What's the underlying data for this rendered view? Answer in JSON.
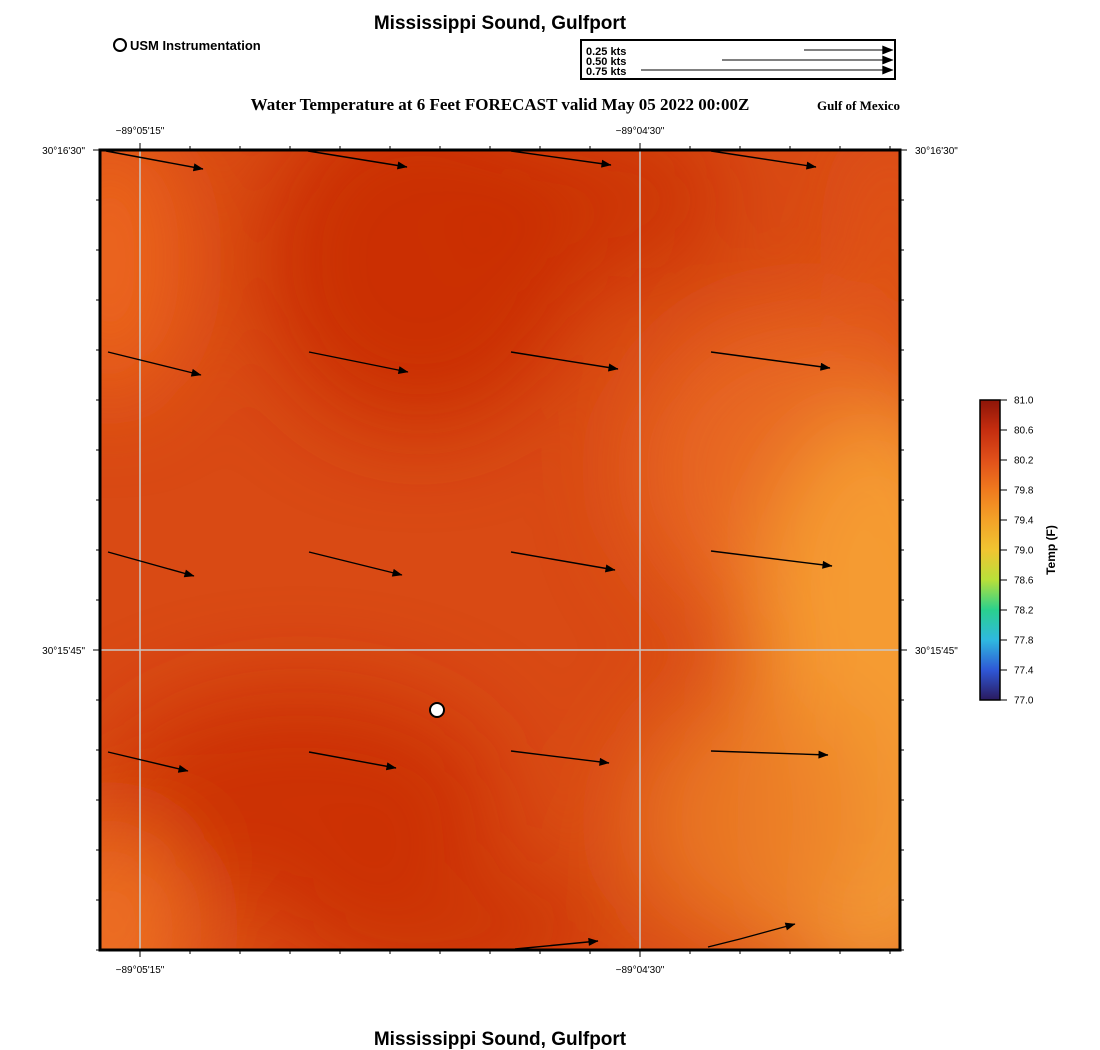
{
  "title_top": "Mississippi Sound, Gulfport",
  "title_bottom": "Mississippi Sound, Gulfport",
  "legend": {
    "station_label": "USM Instrumentation"
  },
  "vector_scale": {
    "labels": [
      "0.25 kts",
      "0.50 kts",
      "0.75 kts"
    ],
    "values_kts": [
      0.25,
      0.5,
      0.75
    ]
  },
  "map_title": "Water Temperature at 6 Feet FORECAST valid May 05 2022 00:00Z",
  "region_label": "Gulf of Mexico",
  "axes": {
    "lon_labels": [
      "−89°05'15\"",
      "−89°04'30\""
    ],
    "lat_labels": [
      "30°16'30\"",
      "30°15'45\""
    ]
  },
  "colorbar": {
    "title": "Temp (F)",
    "ticks": [
      "81.0",
      "80.6",
      "80.2",
      "79.8",
      "79.4",
      "79.0",
      "78.6",
      "78.2",
      "77.8",
      "77.4",
      "77.0"
    ],
    "min": 77.0,
    "max": 81.0,
    "palette": [
      "#2a1a5e",
      "#2f57d6",
      "#2fb9e0",
      "#2ad18e",
      "#b8e03a",
      "#f1c531",
      "#f3a228",
      "#f07a1e",
      "#e0501a",
      "#c52d0f",
      "#8d1508"
    ]
  },
  "field": {
    "base_color": "#d94a14",
    "warm_core_color": "#c92d07",
    "cool_edge_color": "#f5a23a",
    "station": {
      "name": "USM Instrumentation"
    }
  }
}
